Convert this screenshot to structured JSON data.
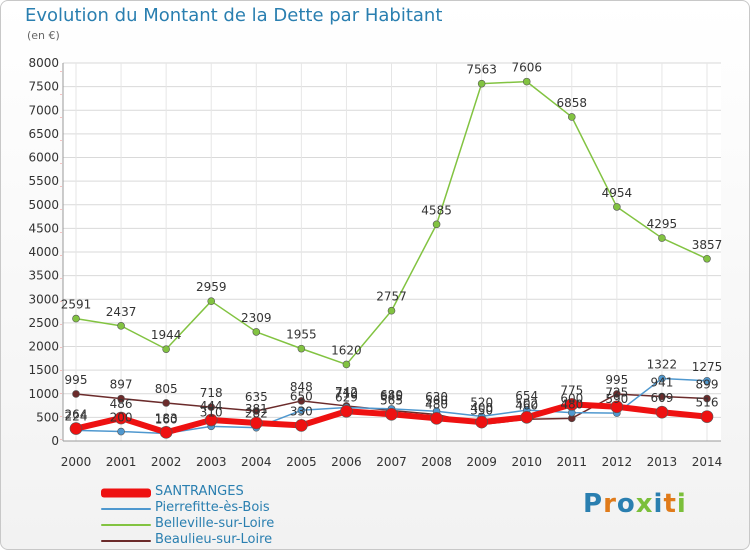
{
  "header": {
    "title": "Evolution du Montant de la Dette par Habitant",
    "unit": "(en €)"
  },
  "logo": {
    "text": "Proxiti",
    "colors": [
      "#2a7fb0",
      "#e07b1a",
      "#2a7fb0",
      "#7bbf3a",
      "#2a7fb0",
      "#e07b1a",
      "#7bbf3a"
    ]
  },
  "chart_data": {
    "type": "line",
    "title": "Evolution du Montant de la Dette par Habitant",
    "ylabel": "(en €)",
    "xlabel": "",
    "ylim": [
      0,
      8000
    ],
    "yticks": [
      0,
      500,
      1000,
      1500,
      2000,
      2500,
      3000,
      3500,
      4000,
      4500,
      5000,
      5500,
      6000,
      6500,
      7000,
      7500,
      8000
    ],
    "grid": true,
    "legend_position": "bottom-left",
    "categories": [
      "2000",
      "2001",
      "2002",
      "2003",
      "2004",
      "2005",
      "2006",
      "2007",
      "2008",
      "2009",
      "2010",
      "2011",
      "2012",
      "2013",
      "2014"
    ],
    "series": [
      {
        "name": "SANTRANGES",
        "color": "#ee1111",
        "values": [
          264,
          486,
          183,
          444,
          381,
          330,
          629,
          565,
          480,
          400,
          502,
          775,
          725,
          609,
          516
        ]
      },
      {
        "name": "Pierrefitte-ès-Bois",
        "color": "#4f98cf",
        "values": [
          224,
          200,
          160,
          310,
          282,
          650,
          710,
          680,
          630,
          520,
          654,
          600,
          590,
          1322,
          1275
        ]
      },
      {
        "name": "Belleville-sur-Loire",
        "color": "#82c341",
        "values": [
          2591,
          2437,
          1944,
          2959,
          2309,
          1955,
          1620,
          2757,
          4585,
          7563,
          7606,
          6858,
          4954,
          4295,
          3857
        ]
      },
      {
        "name": "Beaulieu-sur-Loire",
        "color": "#6b2b2b",
        "values": [
          995,
          897,
          805,
          718,
          635,
          848,
          742,
          645,
          560,
          350,
          460,
          480,
          995,
          941,
          899
        ]
      }
    ]
  }
}
